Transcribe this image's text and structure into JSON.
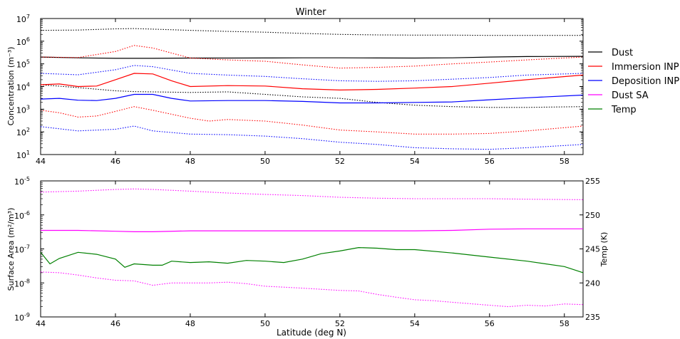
{
  "chart_data": [
    {
      "type": "line",
      "title": "Winter",
      "xlabel": "",
      "ylabel": "Concentration (m⁻³)",
      "yscale": "log",
      "xlim": [
        44,
        58.5
      ],
      "ylim": [
        10,
        10000000
      ],
      "x_ticks": [
        "44",
        "46",
        "48",
        "50",
        "52",
        "54",
        "56",
        "58"
      ],
      "y_ticks": [
        {
          "base": "10",
          "exp": "1"
        },
        {
          "base": "10",
          "exp": "2"
        },
        {
          "base": "10",
          "exp": "3"
        },
        {
          "base": "10",
          "exp": "4"
        },
        {
          "base": "10",
          "exp": "5"
        },
        {
          "base": "10",
          "exp": "6"
        },
        {
          "base": "10",
          "exp": "7"
        }
      ],
      "legend_position": "outside-right",
      "legend": [
        "Dust",
        "Immersion INP",
        "Deposition INP",
        "Dust SA",
        "Temp"
      ],
      "legend_colors": [
        "#000000",
        "#ff0000",
        "#0000ff",
        "#ff00ff",
        "#008000"
      ],
      "series": [
        {
          "name": "Dust",
          "color": "#000000",
          "style": "solid",
          "axis": "left",
          "x": [
            44,
            45,
            46,
            47,
            48,
            49,
            50,
            51,
            52,
            53,
            54,
            55,
            56,
            57,
            58.5
          ],
          "y": [
            200000,
            185000,
            175000,
            175000,
            180000,
            180000,
            182000,
            185000,
            185000,
            182000,
            180000,
            185000,
            200000,
            210000,
            215000
          ]
        },
        {
          "name": "Dust upper",
          "color": "#000000",
          "style": "dotted",
          "axis": "left",
          "x": [
            44,
            45,
            46,
            46.5,
            47,
            48,
            49,
            50,
            51,
            52,
            53,
            54,
            55,
            56,
            57,
            58.5
          ],
          "y": [
            3000000,
            3100000,
            3500000,
            3600000,
            3400000,
            3000000,
            2700000,
            2500000,
            2200000,
            2000000,
            1900000,
            1850000,
            1850000,
            1800000,
            1800000,
            1800000
          ]
        },
        {
          "name": "Dust lower",
          "color": "#000000",
          "style": "dotted",
          "axis": "left",
          "x": [
            44,
            45,
            46,
            46.5,
            47,
            48,
            49,
            50,
            51,
            52,
            53,
            54,
            55,
            56,
            57,
            58.5
          ],
          "y": [
            12000,
            9000,
            6500,
            6000,
            5800,
            5500,
            5800,
            4500,
            3500,
            3000,
            2000,
            1500,
            1300,
            1200,
            1200,
            1300
          ]
        },
        {
          "name": "Immersion INP",
          "color": "#ff0000",
          "style": "solid",
          "axis": "left",
          "x": [
            44,
            44.5,
            45,
            45.5,
            46,
            46.5,
            47,
            47.5,
            48,
            49,
            50,
            51,
            52,
            53,
            54,
            55,
            56,
            57,
            58.5
          ],
          "y": [
            12000,
            13000,
            10000,
            10500,
            20000,
            38000,
            36000,
            18000,
            10000,
            11000,
            10500,
            8000,
            7000,
            7500,
            8500,
            10000,
            14000,
            20000,
            32000
          ]
        },
        {
          "name": "Immersion INP upper",
          "color": "#ff0000",
          "style": "dotted",
          "axis": "left",
          "x": [
            44,
            45,
            46,
            46.5,
            47,
            48,
            49,
            50,
            51,
            52,
            53,
            54,
            55,
            56,
            57,
            58.5
          ],
          "y": [
            200000,
            190000,
            350000,
            650000,
            500000,
            180000,
            150000,
            130000,
            90000,
            65000,
            70000,
            80000,
            100000,
            120000,
            150000,
            200000
          ]
        },
        {
          "name": "Immersion INP lower",
          "color": "#ff0000",
          "style": "dotted",
          "axis": "left",
          "x": [
            44,
            44.5,
            45,
            45.5,
            46,
            46.5,
            47,
            47.5,
            48,
            48.5,
            49,
            50,
            51,
            52,
            53,
            54,
            55,
            56,
            57,
            58.5
          ],
          "y": [
            900,
            700,
            450,
            500,
            800,
            1300,
            900,
            600,
            400,
            300,
            350,
            300,
            200,
            120,
            100,
            80,
            80,
            85,
            110,
            180
          ]
        },
        {
          "name": "Deposition INP",
          "color": "#0000ff",
          "style": "solid",
          "axis": "left",
          "x": [
            44,
            44.5,
            45,
            45.5,
            46,
            46.5,
            47,
            47.5,
            48,
            49,
            50,
            51,
            52,
            53,
            54,
            55,
            56,
            57,
            58.5
          ],
          "y": [
            2800,
            3000,
            2500,
            2400,
            3000,
            4500,
            4500,
            3000,
            2300,
            2400,
            2400,
            2200,
            1900,
            1900,
            2000,
            2100,
            2600,
            3200,
            4200
          ]
        },
        {
          "name": "Deposition INP upper",
          "color": "#0000ff",
          "style": "dotted",
          "axis": "left",
          "x": [
            44,
            45,
            46,
            46.5,
            47,
            48,
            49,
            50,
            51,
            52,
            53,
            54,
            55,
            56,
            57,
            58.5
          ],
          "y": [
            38000,
            33000,
            55000,
            85000,
            75000,
            38000,
            32000,
            28000,
            22000,
            18000,
            17000,
            18000,
            21000,
            25000,
            32000,
            38000
          ]
        },
        {
          "name": "Deposition INP lower",
          "color": "#0000ff",
          "style": "dotted",
          "axis": "left",
          "x": [
            44,
            45,
            46,
            46.5,
            47,
            48,
            49,
            50,
            51,
            52,
            53,
            54,
            55,
            56,
            57,
            58.5
          ],
          "y": [
            170,
            110,
            130,
            180,
            110,
            80,
            75,
            65,
            50,
            35,
            28,
            20,
            18,
            17,
            20,
            28
          ]
        }
      ]
    },
    {
      "type": "line",
      "title": "",
      "xlabel": "Latitude (deg N)",
      "ylabel": "Surface Area (m²/m³)",
      "ylabel_right": "Temp (K)",
      "yscale": "log",
      "xlim": [
        44,
        58.5
      ],
      "ylim": [
        1e-09,
        1e-05
      ],
      "ylim_right": [
        235,
        255
      ],
      "x_ticks": [
        "44",
        "46",
        "48",
        "50",
        "52",
        "54",
        "56",
        "58"
      ],
      "y_ticks": [
        {
          "base": "10",
          "exp": "-9"
        },
        {
          "base": "10",
          "exp": "-8"
        },
        {
          "base": "10",
          "exp": "-7"
        },
        {
          "base": "10",
          "exp": "-6"
        },
        {
          "base": "10",
          "exp": "-5"
        }
      ],
      "y_ticks_right": [
        "235",
        "240",
        "245",
        "250",
        "255"
      ],
      "series": [
        {
          "name": "Dust SA",
          "color": "#ff00ff",
          "style": "solid",
          "axis": "left",
          "x": [
            44,
            45,
            46,
            46.5,
            47,
            48,
            49,
            50,
            51,
            52,
            53,
            54,
            55,
            56,
            57,
            58.5
          ],
          "y": [
            3.5e-07,
            3.5e-07,
            3.3e-07,
            3.2e-07,
            3.2e-07,
            3.4e-07,
            3.4e-07,
            3.4e-07,
            3.4e-07,
            3.4e-07,
            3.4e-07,
            3.4e-07,
            3.5e-07,
            3.8e-07,
            3.9e-07,
            3.9e-07
          ]
        },
        {
          "name": "Dust SA upper",
          "color": "#ff00ff",
          "style": "dotted",
          "axis": "left",
          "x": [
            44,
            45,
            46,
            46.5,
            47,
            48,
            49,
            50,
            51,
            52,
            53,
            54,
            55,
            56,
            57,
            58.5
          ],
          "y": [
            4.7e-06,
            5e-06,
            5.6e-06,
            5.8e-06,
            5.6e-06,
            5e-06,
            4.4e-06,
            4e-06,
            3.7e-06,
            3.3e-06,
            3.1e-06,
            3e-06,
            3e-06,
            3e-06,
            2.9e-06,
            2.8e-06
          ]
        },
        {
          "name": "Dust SA lower",
          "color": "#ff00ff",
          "style": "dotted",
          "axis": "left",
          "x": [
            44,
            44.5,
            45,
            45.5,
            46,
            46.5,
            47,
            47.5,
            48,
            48.5,
            49,
            49.5,
            50,
            50.5,
            51,
            52,
            52.5,
            53,
            53.5,
            54,
            54.5,
            55,
            56,
            56.5,
            57,
            57.5,
            58,
            58.5
          ],
          "y": [
            2.1e-08,
            2e-08,
            1.7e-08,
            1.4e-08,
            1.2e-08,
            1.15e-08,
            8.5e-09,
            1e-08,
            1e-08,
            1e-08,
            1.05e-08,
            9.5e-09,
            8e-09,
            7.5e-09,
            7e-09,
            6e-09,
            5.8e-09,
            4.6e-09,
            3.8e-09,
            3.2e-09,
            3e-09,
            2.7e-09,
            2.2e-09,
            2e-09,
            2.2e-09,
            2.1e-09,
            2.4e-09,
            2.3e-09
          ]
        },
        {
          "name": "Temp",
          "color": "#008000",
          "style": "solid",
          "axis": "right",
          "x": [
            44,
            44.25,
            44.5,
            45,
            45.5,
            46,
            46.25,
            46.5,
            47,
            47.25,
            47.5,
            48,
            48.5,
            49,
            49.5,
            50,
            50.5,
            51,
            51.5,
            52,
            52.5,
            53,
            53.5,
            54,
            55,
            56,
            57,
            58,
            58.5
          ],
          "y": [
            244.5,
            242.8,
            243.6,
            244.5,
            244.2,
            243.5,
            242.3,
            242.8,
            242.6,
            242.6,
            243.2,
            243,
            243.1,
            242.9,
            243.3,
            243.2,
            243,
            243.5,
            244.3,
            244.7,
            245.2,
            245.1,
            244.9,
            244.9,
            244.4,
            243.8,
            243.2,
            242.4,
            241.5
          ]
        }
      ]
    }
  ]
}
